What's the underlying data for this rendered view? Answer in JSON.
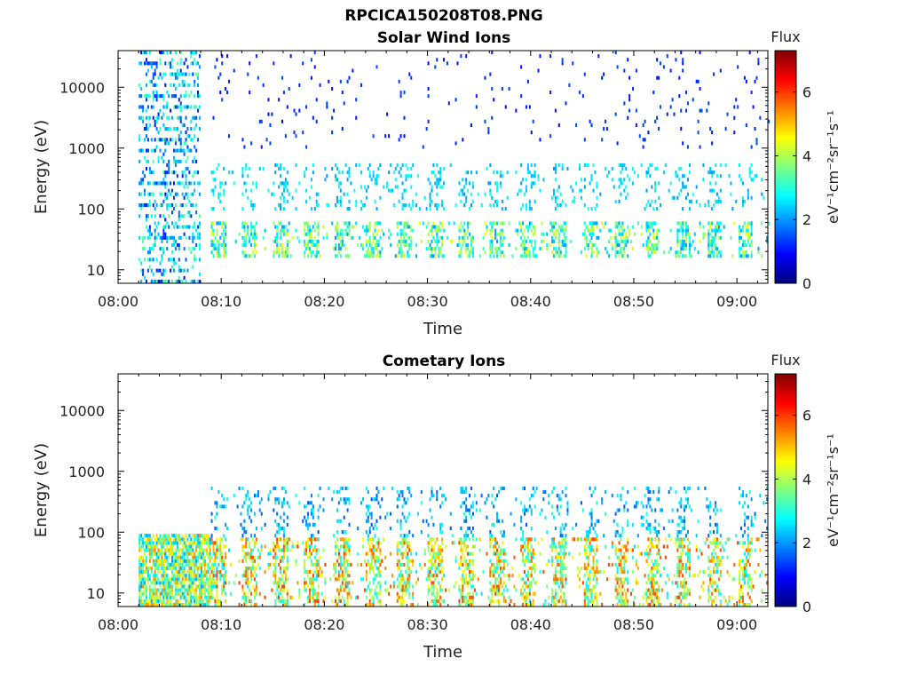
{
  "figure_title": "RPCICA150208T08.PNG",
  "chart_data": [
    {
      "type": "heatmap",
      "title": "Solar Wind Ions",
      "xlabel": "Time",
      "ylabel": "Energy (eV)",
      "x_ticks": [
        "08:00",
        "08:10",
        "08:20",
        "08:30",
        "08:40",
        "08:50",
        "09:00"
      ],
      "xlim": [
        "08:00",
        "09:03"
      ],
      "y_scale": "log",
      "y_ticks": [
        "10",
        "100",
        "1000",
        "10000"
      ],
      "ylim": [
        6,
        40000
      ],
      "colorbar": {
        "label": "Flux",
        "units": "eV⁻¹cm⁻²sr⁻¹s⁻¹",
        "range": [
          0,
          7.3
        ],
        "ticks": [
          "0",
          "2",
          "4",
          "6"
        ]
      },
      "regions": [
        {
          "t_start": "08:02",
          "t_end": "08:08",
          "e_min": 6,
          "e_max": 40000,
          "level_low": 1,
          "level_high": 3.5,
          "density": "sparse-bands"
        },
        {
          "t_start": "08:09",
          "t_end": "09:03",
          "e_min": 15,
          "e_max": 60,
          "level_low": 2,
          "level_high": 4.5,
          "density": "periodic-bursts"
        },
        {
          "t_start": "08:09",
          "t_end": "09:03",
          "e_min": 100,
          "e_max": 600,
          "level_low": 2,
          "level_high": 3,
          "density": "scattered"
        },
        {
          "t_start": "08:09",
          "t_end": "09:03",
          "e_min": 1000,
          "e_max": 40000,
          "level_low": 1,
          "level_high": 1.5,
          "density": "very-sparse"
        }
      ]
    },
    {
      "type": "heatmap",
      "title": "Cometary Ions",
      "xlabel": "Time",
      "ylabel": "Energy (eV)",
      "x_ticks": [
        "08:00",
        "08:10",
        "08:20",
        "08:30",
        "08:40",
        "08:50",
        "09:00"
      ],
      "xlim": [
        "08:00",
        "09:03"
      ],
      "y_scale": "log",
      "y_ticks": [
        "10",
        "100",
        "1000",
        "10000"
      ],
      "ylim": [
        6,
        40000
      ],
      "colorbar": {
        "label": "Flux",
        "units": "eV⁻¹cm⁻²sr⁻¹s⁻¹",
        "range": [
          0,
          7.3
        ],
        "ticks": [
          "0",
          "2",
          "4",
          "6"
        ]
      },
      "regions": [
        {
          "t_start": "08:02",
          "t_end": "08:09",
          "e_min": 6,
          "e_max": 100,
          "level_low": 2,
          "level_high": 5.5,
          "density": "dense"
        },
        {
          "t_start": "08:09",
          "t_end": "09:03",
          "e_min": 6,
          "e_max": 80,
          "level_low": 2.5,
          "level_high": 6,
          "density": "periodic-bursts"
        },
        {
          "t_start": "08:09",
          "t_end": "09:03",
          "e_min": 80,
          "e_max": 600,
          "level_low": 1.5,
          "level_high": 3,
          "density": "scattered"
        }
      ]
    }
  ]
}
